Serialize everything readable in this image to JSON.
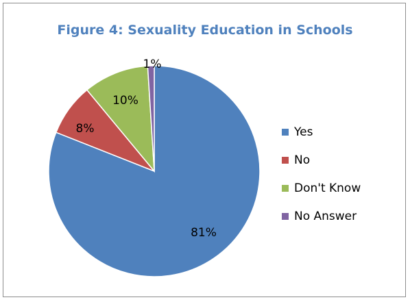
{
  "chart_data": {
    "type": "pie",
    "title": "Figure 4: Sexuality Education in Schools",
    "slices": [
      {
        "label": "Yes",
        "value": 81,
        "display": "81%",
        "color": "#4f81bd"
      },
      {
        "label": "No",
        "value": 8,
        "display": "8%",
        "color": "#c0504d"
      },
      {
        "label": "Don't Know",
        "value": 10,
        "display": "10%",
        "color": "#9bbb59"
      },
      {
        "label": "No Answer",
        "value": 1,
        "display": "1%",
        "color": "#8064a2"
      }
    ],
    "legend_position": "right",
    "start_angle_deg": 0,
    "direction": "clockwise"
  }
}
